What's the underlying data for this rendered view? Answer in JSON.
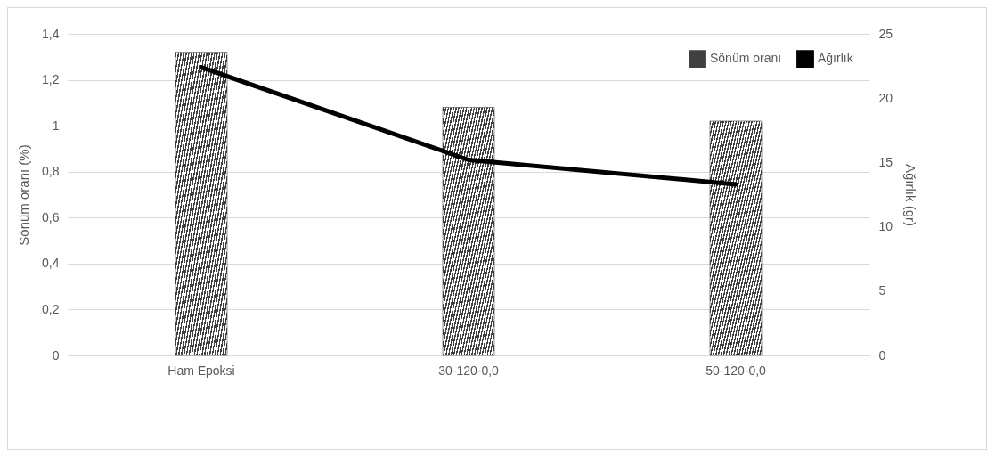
{
  "chart_data": {
    "type": "bar",
    "categories": [
      "Ham Epoksi",
      "30-120-0,0",
      "50-120-0,0"
    ],
    "series": [
      {
        "name": "Sönüm oranı",
        "color": "#404040",
        "values": [
          1.32,
          1.08,
          1.02
        ]
      },
      {
        "name": "Ağırlık",
        "type": "line",
        "axis": "y2",
        "color": "#000000",
        "values": [
          22.4,
          15.2,
          13.3
        ]
      }
    ],
    "ylabel": "Sönüm oranı (%)",
    "y2label": "Ağırlık (gr)",
    "ylim": [
      0,
      1.4
    ],
    "yticks": [
      0,
      {
        "value": 0.2,
        "label": "0,2"
      },
      {
        "value": 0.4,
        "label": "0,4"
      },
      {
        "value": 0.6,
        "label": "0,6"
      },
      {
        "value": 0.8,
        "label": "0,8"
      },
      1,
      {
        "value": 1.2,
        "label": "1,2"
      },
      {
        "value": 1.4,
        "label": "1,4"
      }
    ],
    "y2lim": [
      0,
      25
    ],
    "y2ticks": [
      0,
      5,
      10,
      15,
      20,
      25
    ],
    "grid": "y",
    "legend": "top right"
  }
}
